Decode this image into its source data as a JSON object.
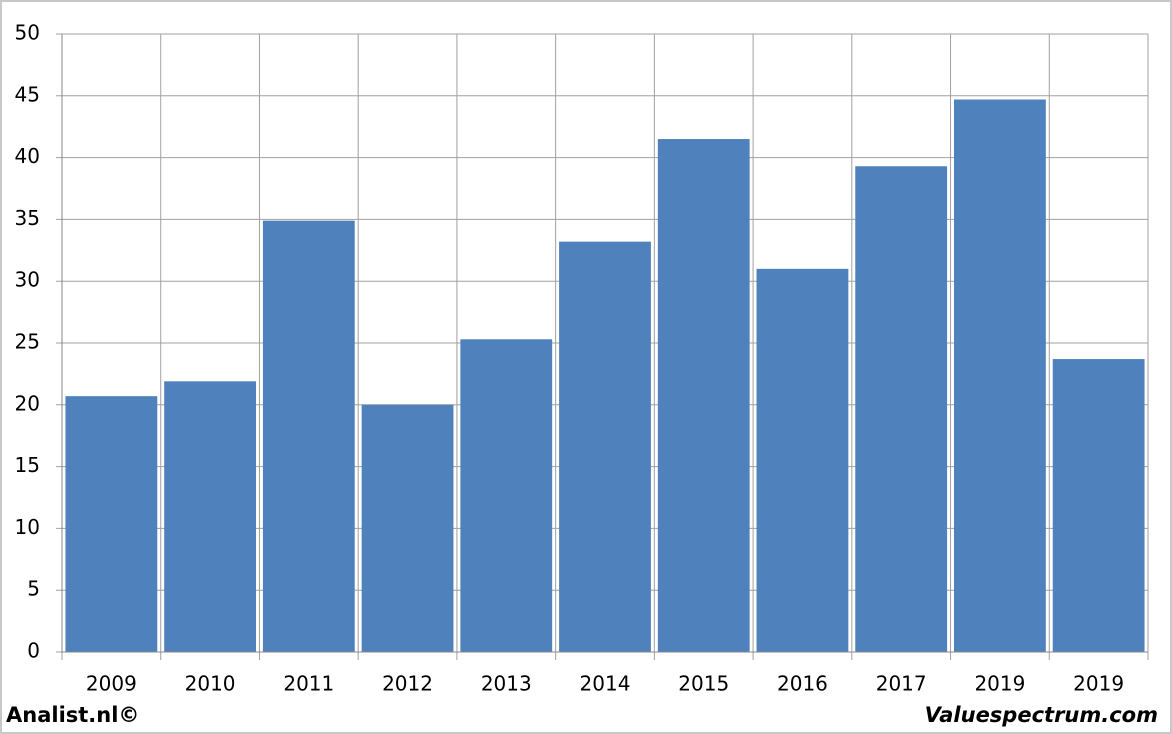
{
  "chart_data": {
    "type": "bar",
    "categories": [
      "2009",
      "2010",
      "2011",
      "2012",
      "2013",
      "2014",
      "2015",
      "2016",
      "2017",
      "2019",
      "2019"
    ],
    "values": [
      20.7,
      21.9,
      34.9,
      20.0,
      25.3,
      33.2,
      41.5,
      31.0,
      39.3,
      44.7,
      23.7
    ],
    "color": "#4f81bd",
    "ylim": [
      0,
      50
    ],
    "yticks": [
      0,
      5,
      10,
      15,
      20,
      25,
      30,
      35,
      40,
      45,
      50
    ],
    "grid": true
  },
  "footer": {
    "left": "Analist.nl©",
    "right": "Valuespectrum.com"
  }
}
